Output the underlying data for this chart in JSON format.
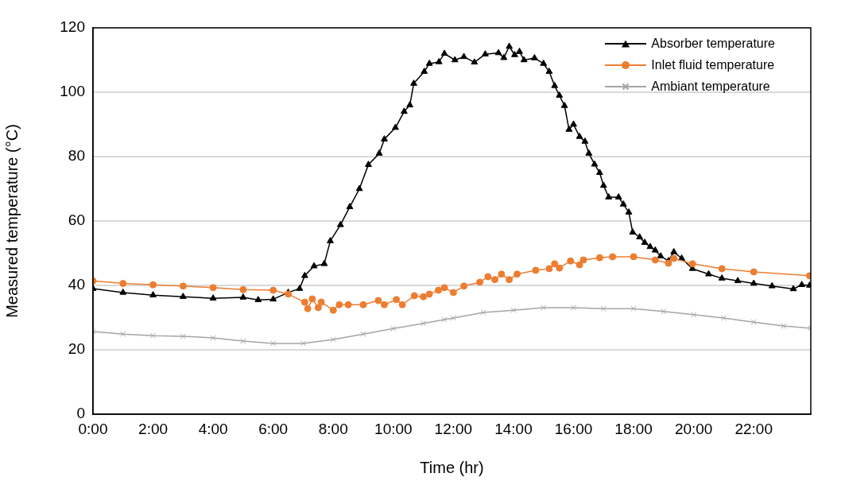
{
  "chart_data": {
    "type": "line",
    "xlabel": "Time (hr)",
    "ylabel": "Measured temperature (°C)",
    "xlim": [
      0,
      23.9
    ],
    "ylim": [
      0,
      120
    ],
    "xticks": [
      {
        "value": 0,
        "label": "0:00"
      },
      {
        "value": 2,
        "label": "2:00"
      },
      {
        "value": 4,
        "label": "4:00"
      },
      {
        "value": 6,
        "label": "6:00"
      },
      {
        "value": 8,
        "label": "8:00"
      },
      {
        "value": 10,
        "label": "10:00"
      },
      {
        "value": 12,
        "label": "12:00"
      },
      {
        "value": 14,
        "label": "14:00"
      },
      {
        "value": 16,
        "label": "16:00"
      },
      {
        "value": 18,
        "label": "18:00"
      },
      {
        "value": 20,
        "label": "20:00"
      },
      {
        "value": 22,
        "label": "22:00"
      }
    ],
    "yticks": [
      0,
      20,
      40,
      60,
      80,
      100,
      120
    ],
    "grid": "y",
    "legend": "top right",
    "line_style": "solid",
    "series": [
      {
        "name": "Absorber temperature",
        "color": "#000000",
        "marker": "triangle",
        "x": [
          0,
          1,
          2,
          3,
          4,
          5,
          5.5,
          6,
          6.5,
          6.88,
          7.05,
          7.36,
          7.7,
          7.9,
          8.24,
          8.55,
          8.87,
          9.17,
          9.53,
          9.7,
          10.07,
          10.36,
          10.55,
          10.68,
          11.03,
          11.2,
          11.52,
          11.7,
          12.05,
          12.35,
          12.7,
          13.06,
          13.5,
          13.68,
          13.86,
          14.04,
          14.2,
          14.35,
          14.7,
          15.0,
          15.19,
          15.37,
          15.53,
          15.7,
          15.85,
          16.0,
          16.2,
          16.38,
          16.51,
          16.7,
          16.87,
          17.0,
          17.17,
          17.5,
          17.66,
          17.84,
          17.97,
          18.2,
          18.37,
          18.55,
          18.72,
          18.9,
          19.16,
          19.34,
          19.6,
          19.96,
          20.5,
          20.94,
          21.47,
          22.0,
          22.61,
          23.32,
          23.6,
          23.86
        ],
        "values": [
          39,
          37.8,
          37,
          36.5,
          36,
          36.3,
          35.5,
          35.7,
          37.8,
          39,
          43,
          46,
          46.7,
          53.8,
          58.8,
          64.4,
          70,
          77.5,
          81,
          85.4,
          89,
          94,
          96,
          102.7,
          106.4,
          108.9,
          109.4,
          112,
          110,
          111,
          109.3,
          111.8,
          112.2,
          110.7,
          114.2,
          111.6,
          112.6,
          110,
          110.6,
          108.9,
          106.4,
          102,
          99,
          95.8,
          88.4,
          90,
          86.2,
          84.7,
          81,
          77.6,
          75,
          71,
          67.4,
          67.4,
          65.2,
          62.7,
          56.5,
          55,
          53.3,
          52,
          50.9,
          49.1,
          47.6,
          50.4,
          48.4,
          45.2,
          43.5,
          42.2,
          41.4,
          40.6,
          39.8,
          38.9,
          40.2,
          40
        ]
      },
      {
        "name": "Inlet fluid temperature",
        "color": "#ed7d31",
        "marker": "circle",
        "x": [
          0,
          1,
          2,
          3,
          4,
          5,
          6,
          6.5,
          7.05,
          7.15,
          7.3,
          7.5,
          7.6,
          8.0,
          8.2,
          8.5,
          9,
          9.5,
          9.7,
          10.1,
          10.3,
          10.7,
          11.0,
          11.2,
          11.5,
          11.7,
          12.0,
          12.35,
          12.88,
          13.15,
          13.38,
          13.6,
          13.86,
          14.12,
          14.74,
          15.19,
          15.37,
          15.53,
          15.9,
          16.2,
          16.33,
          16.87,
          17.3,
          18.0,
          18.72,
          19.16,
          19.34,
          19.96,
          20.94,
          22,
          23.86
        ],
        "values": [
          41.4,
          40.6,
          40.2,
          39.8,
          39.3,
          38.7,
          38.5,
          37.3,
          34.8,
          32.8,
          35.8,
          33.1,
          34.8,
          32.3,
          34,
          34,
          34,
          35.3,
          34,
          35.6,
          34,
          36.8,
          36.5,
          37.3,
          38.5,
          39.3,
          37.8,
          39.8,
          41,
          42.7,
          41.8,
          43.5,
          41.8,
          43.5,
          44.7,
          45.2,
          46.7,
          45.4,
          47.6,
          46.4,
          47.9,
          48.6,
          48.9,
          48.9,
          47.9,
          46.9,
          48.4,
          46.7,
          45.2,
          44.2,
          43
        ]
      },
      {
        "name": "Ambiant temperature",
        "color": "#a5a5a5",
        "marker": "cross",
        "x": [
          0,
          1,
          2,
          3,
          4,
          5,
          6,
          7,
          8,
          9,
          10,
          11,
          11.7,
          12,
          13,
          14,
          15,
          16,
          17,
          18,
          19,
          20,
          21,
          22,
          23,
          23.9
        ],
        "values": [
          25.7,
          24.9,
          24.4,
          24.2,
          23.7,
          22.7,
          22,
          22,
          23.2,
          24.9,
          26.6,
          28.2,
          29.4,
          29.9,
          31.6,
          32.3,
          33.1,
          33.1,
          32.8,
          32.8,
          31.9,
          30.9,
          29.9,
          28.6,
          27.4,
          26.7
        ]
      }
    ]
  }
}
